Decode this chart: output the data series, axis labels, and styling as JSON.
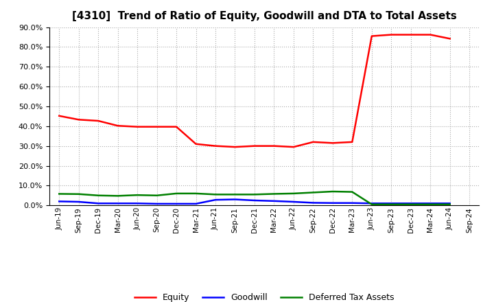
{
  "title": "[4310]  Trend of Ratio of Equity, Goodwill and DTA to Total Assets",
  "x_labels": [
    "Jun-19",
    "Sep-19",
    "Dec-19",
    "Mar-20",
    "Jun-20",
    "Sep-20",
    "Dec-20",
    "Mar-21",
    "Jun-21",
    "Sep-21",
    "Dec-21",
    "Mar-22",
    "Jun-22",
    "Sep-22",
    "Dec-22",
    "Mar-23",
    "Jun-23",
    "Sep-23",
    "Dec-23",
    "Mar-24",
    "Jun-24",
    "Sep-24"
  ],
  "equity": [
    0.452,
    0.433,
    0.427,
    0.402,
    0.397,
    0.397,
    0.397,
    0.31,
    0.3,
    0.295,
    0.3,
    0.3,
    0.295,
    0.32,
    0.315,
    0.32,
    0.855,
    0.862,
    0.862,
    0.862,
    0.842,
    null
  ],
  "goodwill": [
    0.02,
    0.018,
    0.01,
    0.01,
    0.01,
    0.008,
    0.008,
    0.008,
    0.028,
    0.03,
    0.025,
    0.022,
    0.018,
    0.013,
    0.012,
    0.012,
    0.01,
    0.01,
    0.01,
    0.01,
    0.01,
    null
  ],
  "dta": [
    0.058,
    0.057,
    0.05,
    0.048,
    0.052,
    0.05,
    0.06,
    0.06,
    0.055,
    0.055,
    0.055,
    0.058,
    0.06,
    0.065,
    0.07,
    0.068,
    0.005,
    0.005,
    0.005,
    0.005,
    0.005,
    null
  ],
  "equity_color": "#FF0000",
  "goodwill_color": "#0000FF",
  "dta_color": "#008000",
  "ylim": [
    0.0,
    0.9
  ],
  "yticks": [
    0.0,
    0.1,
    0.2,
    0.3,
    0.4,
    0.5,
    0.6,
    0.7,
    0.8,
    0.9
  ],
  "background_color": "#FFFFFF",
  "grid_color": "#AAAAAA",
  "legend_labels": [
    "Equity",
    "Goodwill",
    "Deferred Tax Assets"
  ],
  "title_fontsize": 11,
  "linewidth": 1.8
}
